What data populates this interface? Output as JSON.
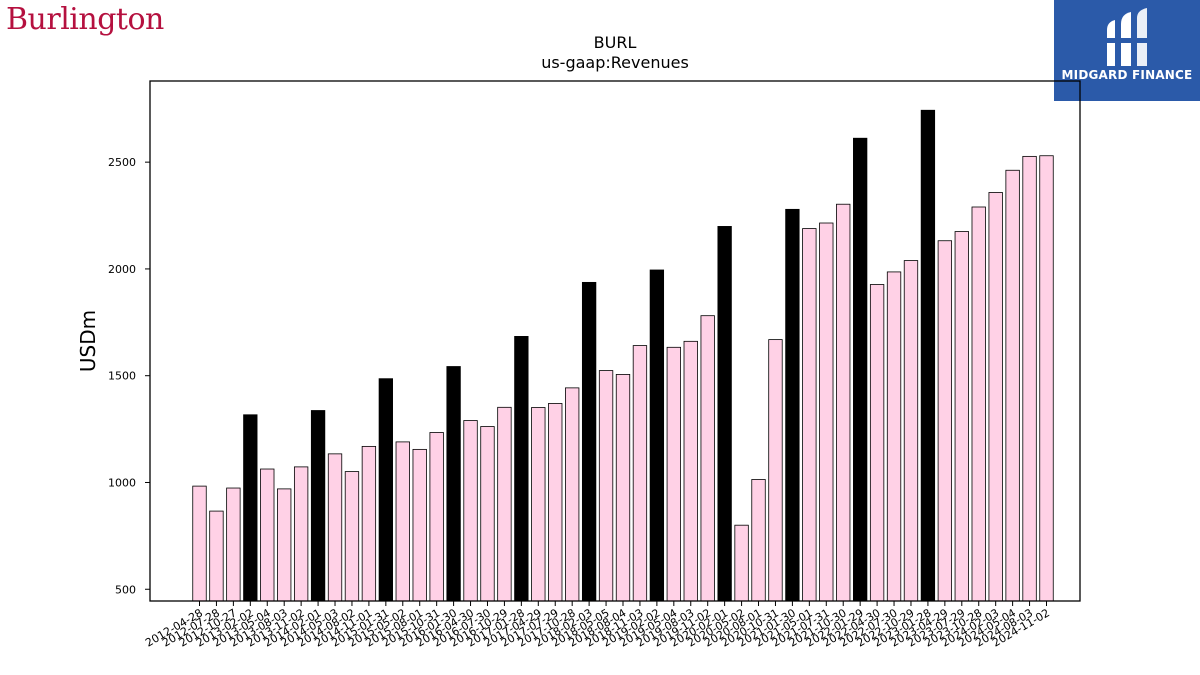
{
  "logos": {
    "left_brand": "Burlington",
    "right_brand": "MIDGARD FINANCE",
    "left_color": "#b5103f",
    "right_bg": "#2b5aa9"
  },
  "chart_data": {
    "type": "bar",
    "title": "BURL",
    "subtitle": "us-gaap:Revenues",
    "ylabel": "USDm",
    "xlabel": "",
    "ylim": [
      445,
      2880
    ],
    "yticks": [
      500,
      1000,
      1500,
      2000,
      2500
    ],
    "grid": false,
    "highlight_color": "#000000",
    "bar_color": "#ffd1e6",
    "categories": [
      "2012-04-28",
      "2012-07-28",
      "2012-10-27",
      "2013-02-02",
      "2013-05-04",
      "2013-08-03",
      "2013-11-02",
      "2014-02-01",
      "2014-05-03",
      "2014-08-02",
      "2014-11-01",
      "2015-01-31",
      "2015-05-02",
      "2015-08-01",
      "2015-10-31",
      "2016-01-30",
      "2016-04-30",
      "2016-07-30",
      "2016-10-29",
      "2017-01-28",
      "2017-04-29",
      "2017-07-29",
      "2017-10-28",
      "2018-02-03",
      "2018-05-05",
      "2018-08-04",
      "2018-11-03",
      "2019-02-02",
      "2019-05-04",
      "2019-08-03",
      "2019-11-02",
      "2020-02-01",
      "2020-05-02",
      "2020-08-01",
      "2020-10-31",
      "2021-01-30",
      "2021-05-01",
      "2021-07-31",
      "2021-10-30",
      "2022-01-29",
      "2022-04-30",
      "2022-07-30",
      "2022-10-29",
      "2023-01-28",
      "2023-04-29",
      "2023-07-29",
      "2023-10-28",
      "2024-02-03",
      "2024-05-04",
      "2024-08-03",
      "2024-11-02"
    ],
    "values": [
      983,
      866,
      974,
      1317,
      1063,
      970,
      1073,
      1337,
      1134,
      1051,
      1169,
      1486,
      1190,
      1155,
      1234,
      1543,
      1290,
      1262,
      1352,
      1684,
      1351,
      1370,
      1443,
      1937,
      1524,
      1506,
      1641,
      1995,
      1633,
      1661,
      1781,
      2199,
      800,
      1014,
      1669,
      2279,
      2189,
      2215,
      2303,
      2612,
      1927,
      1986,
      2039,
      2743,
      2132,
      2175,
      2290,
      2358,
      2462,
      2527,
      2530
    ],
    "highlighted": [
      false,
      false,
      false,
      true,
      false,
      false,
      false,
      true,
      false,
      false,
      false,
      true,
      false,
      false,
      false,
      true,
      false,
      false,
      false,
      true,
      false,
      false,
      false,
      true,
      false,
      false,
      false,
      true,
      false,
      false,
      false,
      true,
      false,
      false,
      false,
      true,
      false,
      false,
      false,
      true,
      false,
      false,
      false,
      true,
      false,
      false,
      false,
      false,
      false,
      false,
      false
    ]
  }
}
